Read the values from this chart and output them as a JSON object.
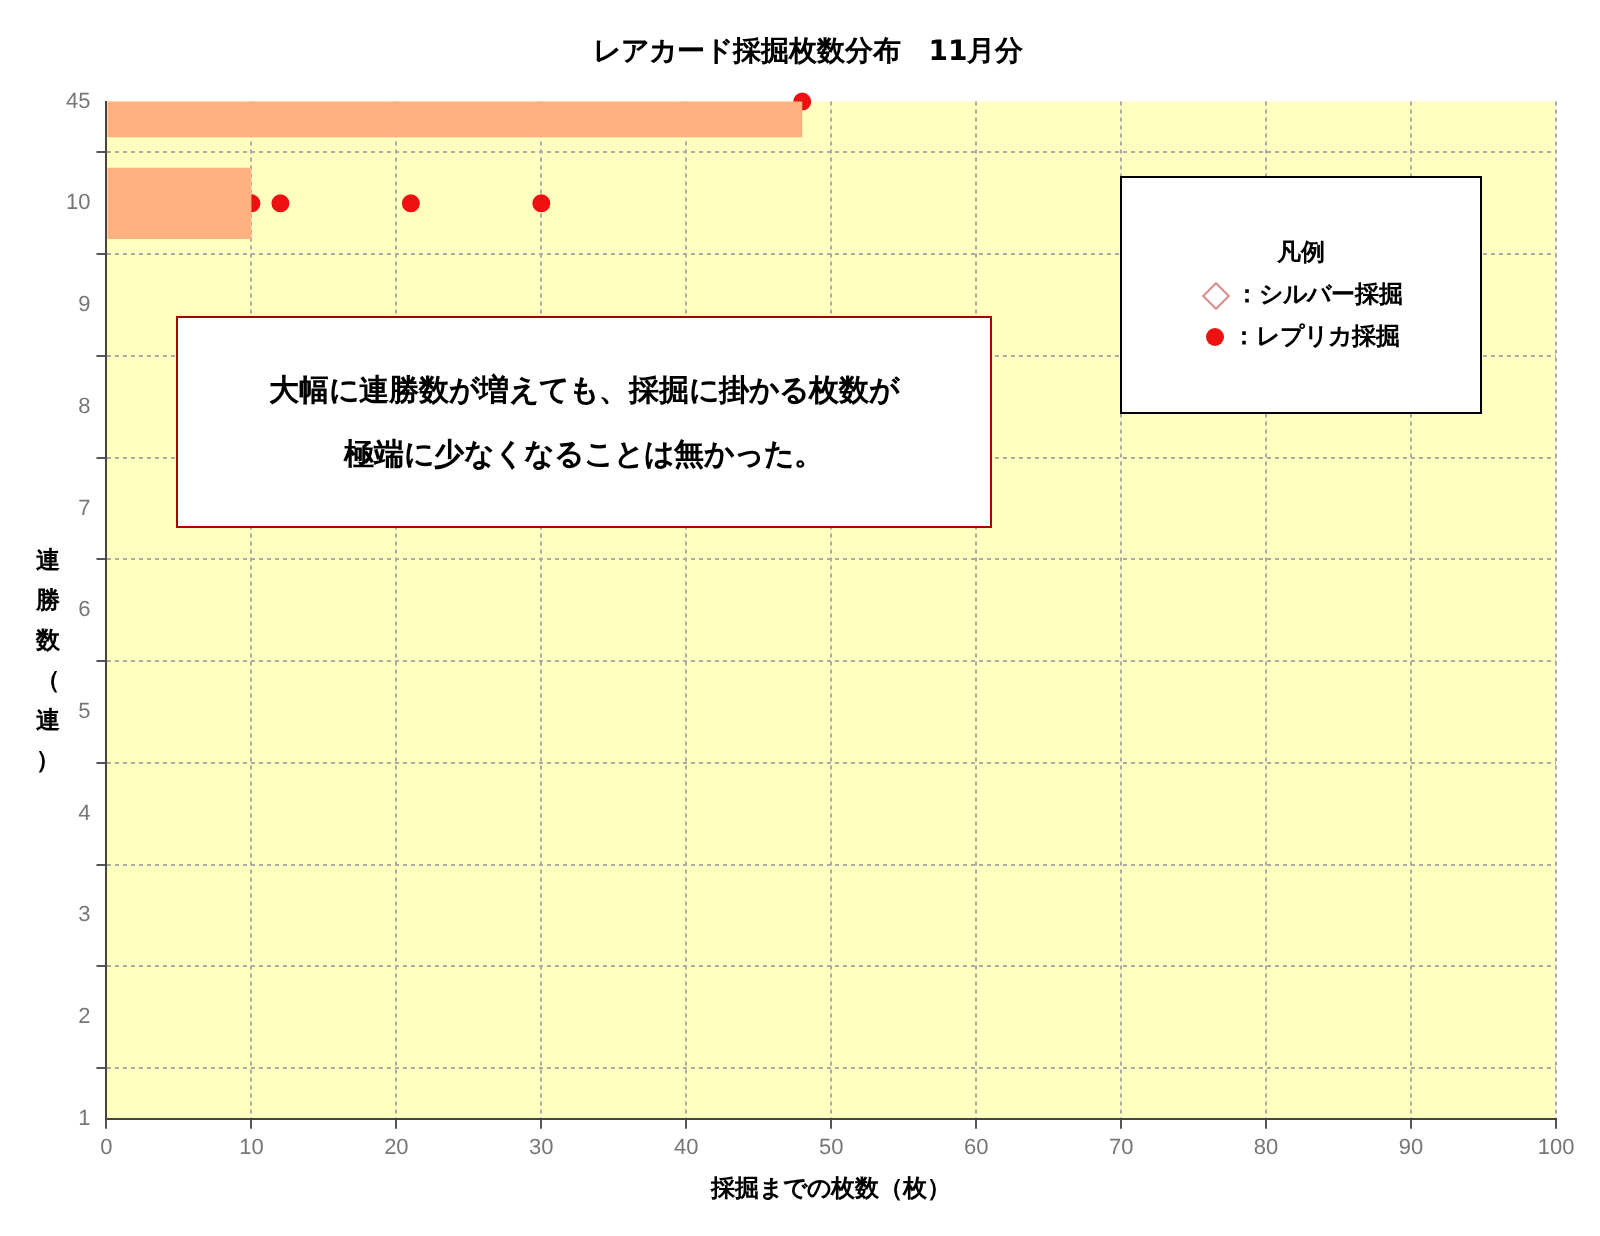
{
  "chart_data": {
    "type": "bar",
    "orientation": "horizontal",
    "title": "レアカード採掘枚数分布　11月分",
    "xlabel": "採掘までの枚数（枚）",
    "ylabel": "連勝数（連）",
    "legend_title": "凡例",
    "categories": [
      "45",
      "10",
      "9",
      "8",
      "7",
      "6",
      "5",
      "4",
      "3",
      "2",
      "1"
    ],
    "series": [
      {
        "color": "#ffb07f",
        "values": [
          48,
          10,
          null,
          null,
          null,
          null,
          null,
          null,
          null,
          null,
          null
        ]
      },
      {
        "type": "scatter",
        "name": "：シルバー採掘",
        "color": "#e08a8a",
        "marker": "diamond",
        "values": [
          null,
          null,
          null,
          null,
          null,
          null,
          null,
          null,
          null,
          null,
          null
        ]
      },
      {
        "type": "scatter",
        "name": "：レプリカ採掘",
        "color": "#ee1111",
        "marker": "circle",
        "x": [
          "10",
          "10",
          "10",
          "10",
          "45"
        ],
        "values": [
          10,
          12,
          21,
          30,
          48
        ]
      }
    ],
    "xlim": [
      0,
      100
    ],
    "xticks": [
      0,
      10,
      20,
      30,
      40,
      50,
      60,
      70,
      80,
      90,
      100
    ],
    "grid": true,
    "legend": "top right",
    "annotations": [
      "大幅に連勝数が増えても、採掘に掛かる枚数が極端に少なくなることは無かった。"
    ]
  }
}
